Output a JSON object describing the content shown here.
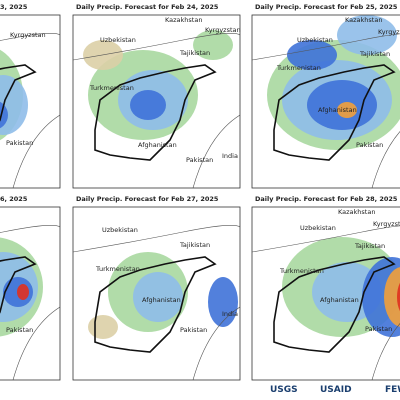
{
  "panels": [
    {
      "title": "3, 2025",
      "labels": [
        "Kyrgyzstan",
        "Pakistan"
      ]
    },
    {
      "title": "Daily Precip. Forecast for Feb 24, 2025",
      "labels": [
        "Kazakhstan",
        "Kyrgyzstan",
        "Uzbekistan",
        "Tajikistan",
        "Turkmenistan",
        "Afghanistan",
        "Pakistan",
        "India"
      ]
    },
    {
      "title": "Daily Precip. Forecast for Feb 25, 2025",
      "labels": [
        "Kazakhstan",
        "Kyrgyzstan",
        "Uzbekistan",
        "Tajikistan",
        "Turkmenistan",
        "Afghanistan",
        "Pakistan"
      ]
    },
    {
      "title": "6, 2025",
      "labels": [
        "Pakistan"
      ]
    },
    {
      "title": "Daily Precip. Forecast for Feb 27, 2025",
      "labels": [
        "Uzbekistan",
        "Tajikistan",
        "Turkmenistan",
        "Afghanistan",
        "Pakistan",
        "India"
      ]
    },
    {
      "title": "Daily Precip. Forecast for Feb 28, 2025",
      "labels": [
        "Kazakhstan",
        "Kyrgyzstan",
        "Uzbekistan",
        "Tajikistan",
        "Turkmenistan",
        "Afghanistan",
        "Pakistan"
      ]
    }
  ],
  "logos": [
    "USGS",
    "USAID",
    "FEW"
  ]
}
